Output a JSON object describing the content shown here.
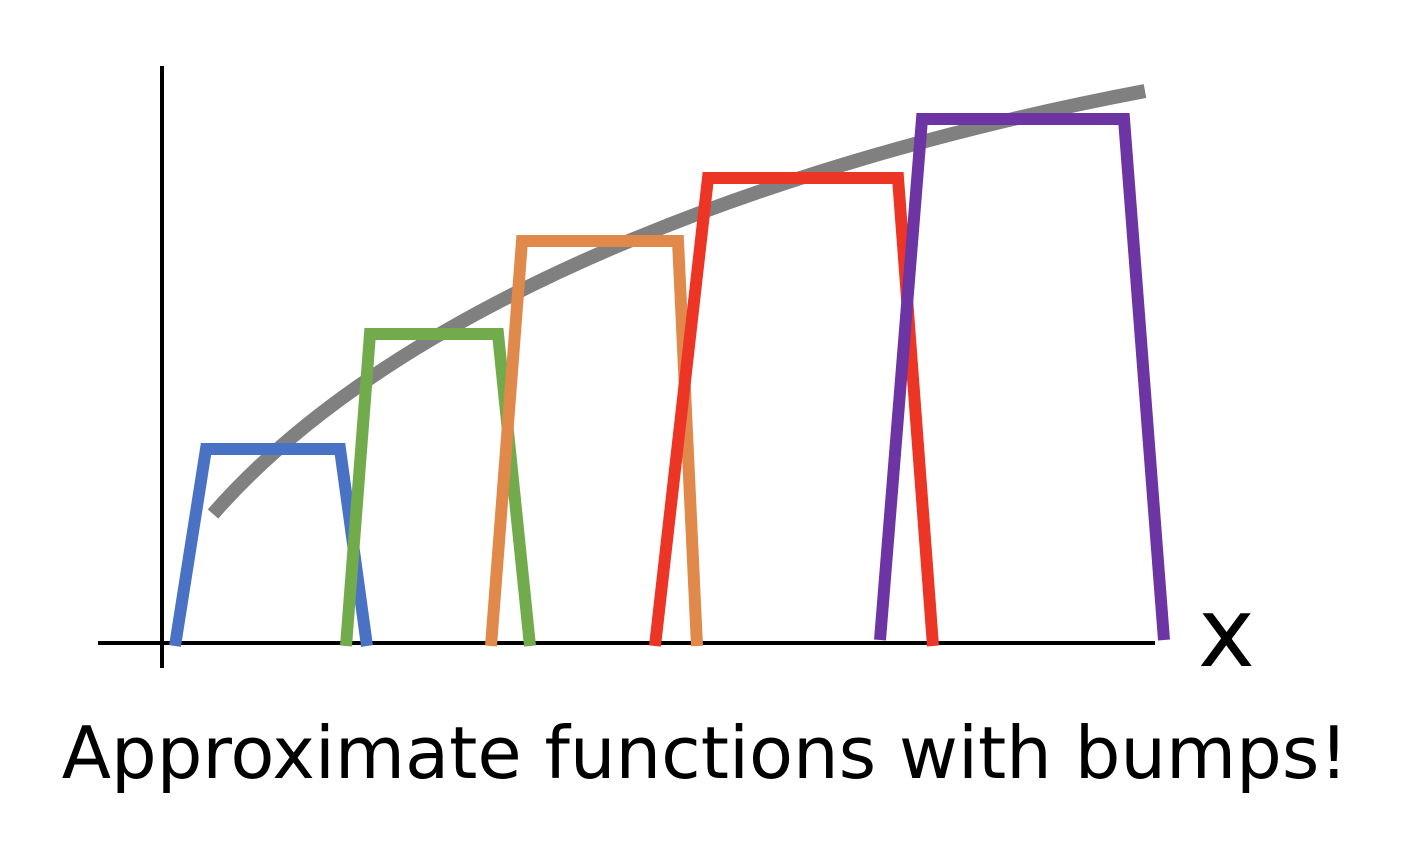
{
  "diagram": {
    "x_axis_label": "x",
    "caption": "Approximate functions with bumps!",
    "curve": {
      "color": "#808080"
    },
    "bumps": [
      {
        "id": "bump-1",
        "color": "#4a72c4"
      },
      {
        "id": "bump-2",
        "color": "#72ab4c"
      },
      {
        "id": "bump-3",
        "color": "#e0894a"
      },
      {
        "id": "bump-4",
        "color": "#ec3524"
      },
      {
        "id": "bump-5",
        "color": "#6d34a4"
      }
    ]
  }
}
